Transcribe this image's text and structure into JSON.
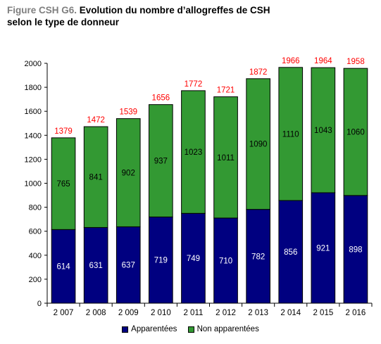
{
  "title": {
    "prefix": "Figure CSH G6.",
    "line1": " Evolution du nombre d’allogreffes de CSH",
    "line2": "selon le type de donneur"
  },
  "colors": {
    "apparentees": "#000080",
    "non_apparentees": "#339933",
    "total_label": "#ff0000"
  },
  "chart_data": {
    "type": "bar",
    "stacked": true,
    "categories": [
      "2 007",
      "2 008",
      "2 009",
      "2 010",
      "2 011",
      "2 012",
      "2 013",
      "2 014",
      "2 015",
      "2 016"
    ],
    "series": [
      {
        "name": "Apparentées",
        "values": [
          614,
          631,
          637,
          719,
          749,
          710,
          782,
          856,
          921,
          898
        ]
      },
      {
        "name": "Non apparentées",
        "values": [
          765,
          841,
          902,
          937,
          1023,
          1011,
          1090,
          1110,
          1043,
          1060
        ]
      }
    ],
    "totals": [
      1379,
      1472,
      1539,
      1656,
      1772,
      1721,
      1872,
      1966,
      1964,
      1958
    ],
    "ylim": [
      0,
      2000
    ],
    "yticks": [
      0,
      200,
      400,
      600,
      800,
      1000,
      1200,
      1400,
      1600,
      1800,
      2000
    ],
    "grid": false,
    "legend_position": "bottom"
  }
}
